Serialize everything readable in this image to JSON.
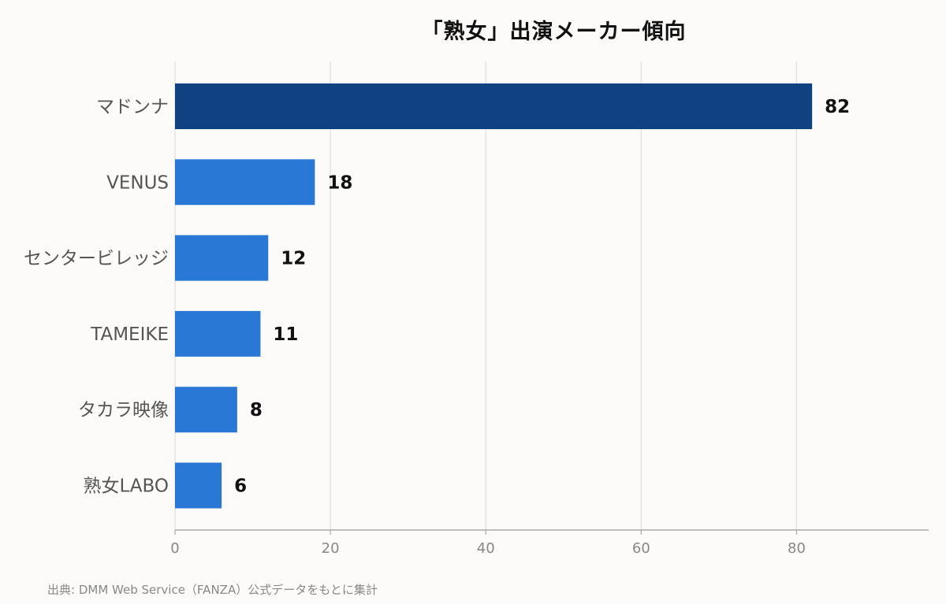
{
  "chart_data": {
    "type": "bar",
    "orientation": "horizontal",
    "title": "「熟女」出演メーカー傾向",
    "categories": [
      "マドンナ",
      "VENUS",
      "センタービレッジ",
      "TAMEIKE",
      "タカラ映像",
      "熟女LABO"
    ],
    "values": [
      82,
      18,
      12,
      11,
      8,
      6
    ],
    "xlim": [
      0,
      97
    ],
    "xticks": [
      0,
      20,
      40,
      60,
      80
    ],
    "xlabel": "",
    "ylabel": "",
    "grid": "vertical",
    "colors": {
      "highlight": "#104282",
      "bar": "#2978d6",
      "grid": "#dddddd",
      "axis": "#aaaaaa",
      "category_label": "#555555",
      "tick_label": "#888888",
      "value_label": "#111111"
    },
    "highlight_index": 0,
    "source": "出典: DMM Web Service（FANZA）公式データをもとに集計"
  }
}
